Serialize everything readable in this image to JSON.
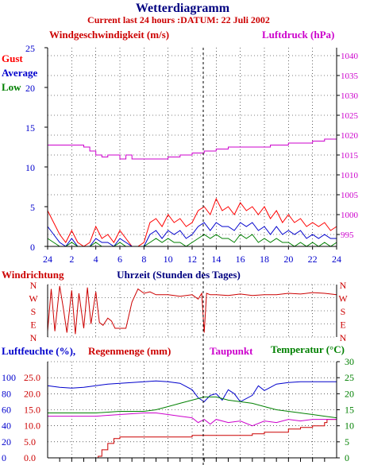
{
  "header": {
    "title": "Wetterdiagramm",
    "subtitle": "Current last 24 hours :DATUM: 22 Juli 2002"
  },
  "colors": {
    "gust": "#ff0000",
    "average": "#0000cc",
    "low": "#008000",
    "pressure": "#cc00cc",
    "direction": "#cc0000",
    "humidity": "#0000cc",
    "rain": "#cc0000",
    "dewpoint": "#cc00cc",
    "temperature": "#008000",
    "title": "#000080"
  },
  "panels": {
    "wind": {
      "left_title": "Windgeschwindigkeit (m/s)",
      "right_title": "Luftdruck (hPa)",
      "legend": [
        "Gust",
        "Average",
        "Low"
      ]
    },
    "direction": {
      "left_title": "Windrichtung",
      "center_title": "Uhrzeit (Stunden des Tages)"
    },
    "climate": {
      "humidity_title": "Luftfeuchte (%),",
      "rain_title": "Regenmenge (mm)",
      "dewpoint_title": "Taupunkt",
      "temperature_title": "Temperatur (°C)"
    }
  },
  "chart_data": [
    {
      "type": "line",
      "title": "Windgeschwindigkeit (m/s)",
      "ylabel": "Windgeschwindigkeit (m/s)",
      "y2label": "Luftdruck (hPa)",
      "ylim": [
        0,
        25
      ],
      "y2lim": [
        992,
        1042
      ],
      "yticks": [
        0,
        5,
        10,
        15,
        20,
        25
      ],
      "y2ticks": [
        995,
        1000,
        1005,
        1010,
        1015,
        1020,
        1025,
        1030,
        1035,
        1040
      ],
      "xticks": [
        "24",
        "2",
        "4",
        "6",
        "8",
        "10",
        "12",
        "14",
        "16",
        "18",
        "20",
        "22",
        "24"
      ],
      "x_hours": [
        0,
        24
      ],
      "grid": true,
      "legend_position": "top-left",
      "series": [
        {
          "name": "Gust",
          "hours": [
            0,
            0.5,
            1,
            1.5,
            2,
            2.5,
            3,
            3.5,
            4,
            4.5,
            5,
            5.5,
            6,
            6.5,
            7,
            7.5,
            8,
            8.5,
            9,
            9.5,
            10,
            10.5,
            11,
            11.5,
            12,
            12.5,
            13,
            13.5,
            14,
            14.5,
            15,
            15.5,
            16,
            16.5,
            17,
            17.5,
            18,
            18.5,
            19,
            19.5,
            20,
            20.5,
            21,
            21.5,
            22,
            22.5,
            23,
            23.5,
            24
          ],
          "values": [
            4.5,
            3,
            1.5,
            0.5,
            2,
            0.5,
            0,
            0.5,
            2.5,
            1,
            1.5,
            0.5,
            2,
            1,
            0,
            0,
            0.5,
            3,
            3.5,
            2.5,
            4,
            3,
            3.5,
            2.5,
            3,
            4.5,
            5,
            4,
            6,
            4.5,
            5,
            4,
            5.5,
            4.5,
            5,
            4,
            5,
            3.5,
            4.5,
            3,
            4,
            3,
            3.5,
            2.5,
            3,
            2.5,
            3,
            2,
            2.5
          ]
        },
        {
          "name": "Average",
          "hours": [
            0,
            0.5,
            1,
            1.5,
            2,
            2.5,
            3,
            3.5,
            4,
            4.5,
            5,
            5.5,
            6,
            6.5,
            7,
            7.5,
            8,
            8.5,
            9,
            9.5,
            10,
            10.5,
            11,
            11.5,
            12,
            12.5,
            13,
            13.5,
            14,
            14.5,
            15,
            15.5,
            16,
            16.5,
            17,
            17.5,
            18,
            18.5,
            19,
            19.5,
            20,
            20.5,
            21,
            21.5,
            22,
            22.5,
            23,
            23.5,
            24
          ],
          "values": [
            2.5,
            1.5,
            0.5,
            0,
            1,
            0,
            0,
            0,
            1,
            0.5,
            0.5,
            0,
            1,
            0.5,
            0,
            0,
            0,
            1.5,
            2,
            1,
            2,
            1.5,
            2,
            1,
            1.5,
            2.5,
            3,
            2,
            3,
            2.5,
            2.5,
            2,
            3,
            2.5,
            3,
            2,
            2.5,
            1.5,
            2.5,
            1.5,
            2,
            1.5,
            2,
            1,
            1.5,
            1,
            1.5,
            1,
            1
          ]
        },
        {
          "name": "Low",
          "hours": [
            0,
            0.5,
            1,
            1.5,
            2,
            2.5,
            3,
            3.5,
            4,
            4.5,
            5,
            5.5,
            6,
            6.5,
            7,
            7.5,
            8,
            8.5,
            9,
            9.5,
            10,
            10.5,
            11,
            11.5,
            12,
            12.5,
            13,
            13.5,
            14,
            14.5,
            15,
            15.5,
            16,
            16.5,
            17,
            17.5,
            18,
            18.5,
            19,
            19.5,
            20,
            20.5,
            21,
            21.5,
            22,
            22.5,
            23,
            23.5,
            24
          ],
          "values": [
            1,
            0.5,
            0,
            0,
            0.5,
            0,
            0,
            0,
            0.5,
            0,
            0,
            0,
            0.5,
            0,
            0,
            0,
            0,
            0.5,
            1,
            0.5,
            1,
            0.5,
            0.5,
            0,
            0.5,
            1,
            1.5,
            1,
            1.5,
            1,
            1,
            0.5,
            1.5,
            1,
            1.5,
            0.5,
            1,
            0.5,
            1,
            0.5,
            0.5,
            0,
            0.5,
            0,
            0.5,
            0,
            0.5,
            0,
            0.5
          ]
        },
        {
          "name": "Luftdruck",
          "axis": "right",
          "hours": [
            0,
            2,
            3,
            3.5,
            4,
            4.5,
            5,
            6,
            6.5,
            7,
            8,
            9,
            10,
            11,
            12,
            13,
            14,
            15,
            16,
            17,
            18,
            18.5,
            19,
            20,
            21,
            22,
            23,
            24
          ],
          "values": [
            1017.5,
            1017.5,
            1017,
            1016,
            1015,
            1014.5,
            1015,
            1014,
            1015,
            1014,
            1014,
            1014,
            1014.5,
            1015,
            1015.5,
            1016,
            1016.5,
            1017,
            1017,
            1017,
            1017,
            1017.5,
            1017.5,
            1018,
            1018,
            1018.5,
            1019,
            1019
          ]
        }
      ]
    },
    {
      "type": "line",
      "title": "Windrichtung",
      "xlabel": "Uhrzeit (Stunden des Tages)",
      "ycategories": [
        "N",
        "W",
        "S",
        "E",
        "N"
      ],
      "y_degrees": [
        360,
        270,
        180,
        90,
        0
      ],
      "grid": true,
      "series": [
        {
          "name": "Windrichtung",
          "hours": [
            0,
            0.3,
            0.6,
            1,
            1.3,
            1.6,
            2,
            2.3,
            2.6,
            3,
            3.3,
            3.6,
            4,
            4.3,
            4.6,
            5,
            5.3,
            5.6,
            6,
            6.5,
            7,
            7.5,
            8,
            8.5,
            9,
            10,
            11,
            12,
            12.5,
            12.8,
            13,
            13.2,
            13.5,
            14,
            15,
            16,
            17,
            18,
            19,
            20,
            21,
            22,
            23,
            24
          ],
          "values": [
            40,
            330,
            40,
            350,
            200,
            30,
            320,
            20,
            300,
            60,
            340,
            90,
            310,
            100,
            80,
            130,
            110,
            60,
            60,
            60,
            240,
            330,
            300,
            310,
            290,
            290,
            280,
            290,
            260,
            300,
            30,
            300,
            290,
            290,
            285,
            295,
            285,
            290,
            290,
            300,
            295,
            305,
            300,
            290
          ]
        }
      ]
    },
    {
      "type": "line",
      "title": "Luftfeuchte (%), Regenmenge (mm), Taupunkt, Temperatur (°C)",
      "y_left_percent": [
        0,
        20,
        40,
        60,
        80,
        100
      ],
      "y_left_rain": [
        0.0,
        5.0,
        10.0,
        15.0,
        20.0,
        25.0
      ],
      "y_right_temperature": [
        0,
        5,
        10,
        15,
        20,
        25,
        30
      ],
      "grid": true,
      "series": [
        {
          "name": "Luftfeuchte",
          "unit": "%",
          "hours": [
            0,
            1,
            2,
            3,
            4,
            5,
            6,
            7,
            8,
            9,
            10,
            11,
            12,
            12.5,
            13,
            13.5,
            14,
            14.5,
            15,
            15.5,
            16,
            17,
            17.5,
            18,
            18.5,
            19,
            20,
            21,
            22,
            23,
            24
          ],
          "values": [
            90,
            88,
            87,
            88,
            90,
            92,
            93,
            94,
            95,
            96,
            95,
            93,
            85,
            75,
            70,
            78,
            80,
            72,
            85,
            80,
            70,
            78,
            90,
            84,
            88,
            92,
            94,
            95,
            95,
            95,
            95
          ]
        },
        {
          "name": "Regenmenge",
          "unit": "mm",
          "hours": [
            0,
            4,
            4.2,
            4.5,
            5,
            5.5,
            6,
            8,
            10,
            12,
            14,
            16,
            17,
            18,
            19,
            20,
            21,
            22,
            23,
            23.2,
            24
          ],
          "values": [
            0,
            0,
            0.5,
            2.5,
            4.5,
            6,
            6.5,
            6.5,
            6.5,
            7,
            7,
            7,
            7.5,
            8,
            8,
            9,
            9.5,
            10,
            11,
            12,
            12
          ]
        },
        {
          "name": "Temperatur",
          "unit": "°C",
          "hours": [
            0,
            2,
            4,
            6,
            8,
            9,
            10,
            11,
            12,
            13,
            14,
            15,
            16,
            17,
            18,
            19,
            20,
            21,
            22,
            23,
            24
          ],
          "values": [
            14,
            14,
            14,
            14.5,
            14.5,
            15,
            16,
            17,
            18,
            19,
            19,
            18,
            17.5,
            17,
            16,
            15,
            14.5,
            14,
            13.5,
            13,
            12.5
          ]
        },
        {
          "name": "Taupunkt",
          "unit": "°C",
          "hours": [
            0,
            2,
            4,
            6,
            8,
            9,
            10,
            11,
            12,
            12.5,
            13,
            13.5,
            14,
            15,
            16,
            17,
            18,
            19,
            20,
            21,
            22,
            23,
            24
          ],
          "values": [
            13,
            13,
            13,
            13.5,
            14,
            14,
            13.5,
            13,
            12.5,
            11,
            12,
            10.5,
            12,
            11,
            11.5,
            10,
            11.5,
            11,
            12,
            11.5,
            12,
            12,
            12
          ]
        }
      ]
    }
  ]
}
